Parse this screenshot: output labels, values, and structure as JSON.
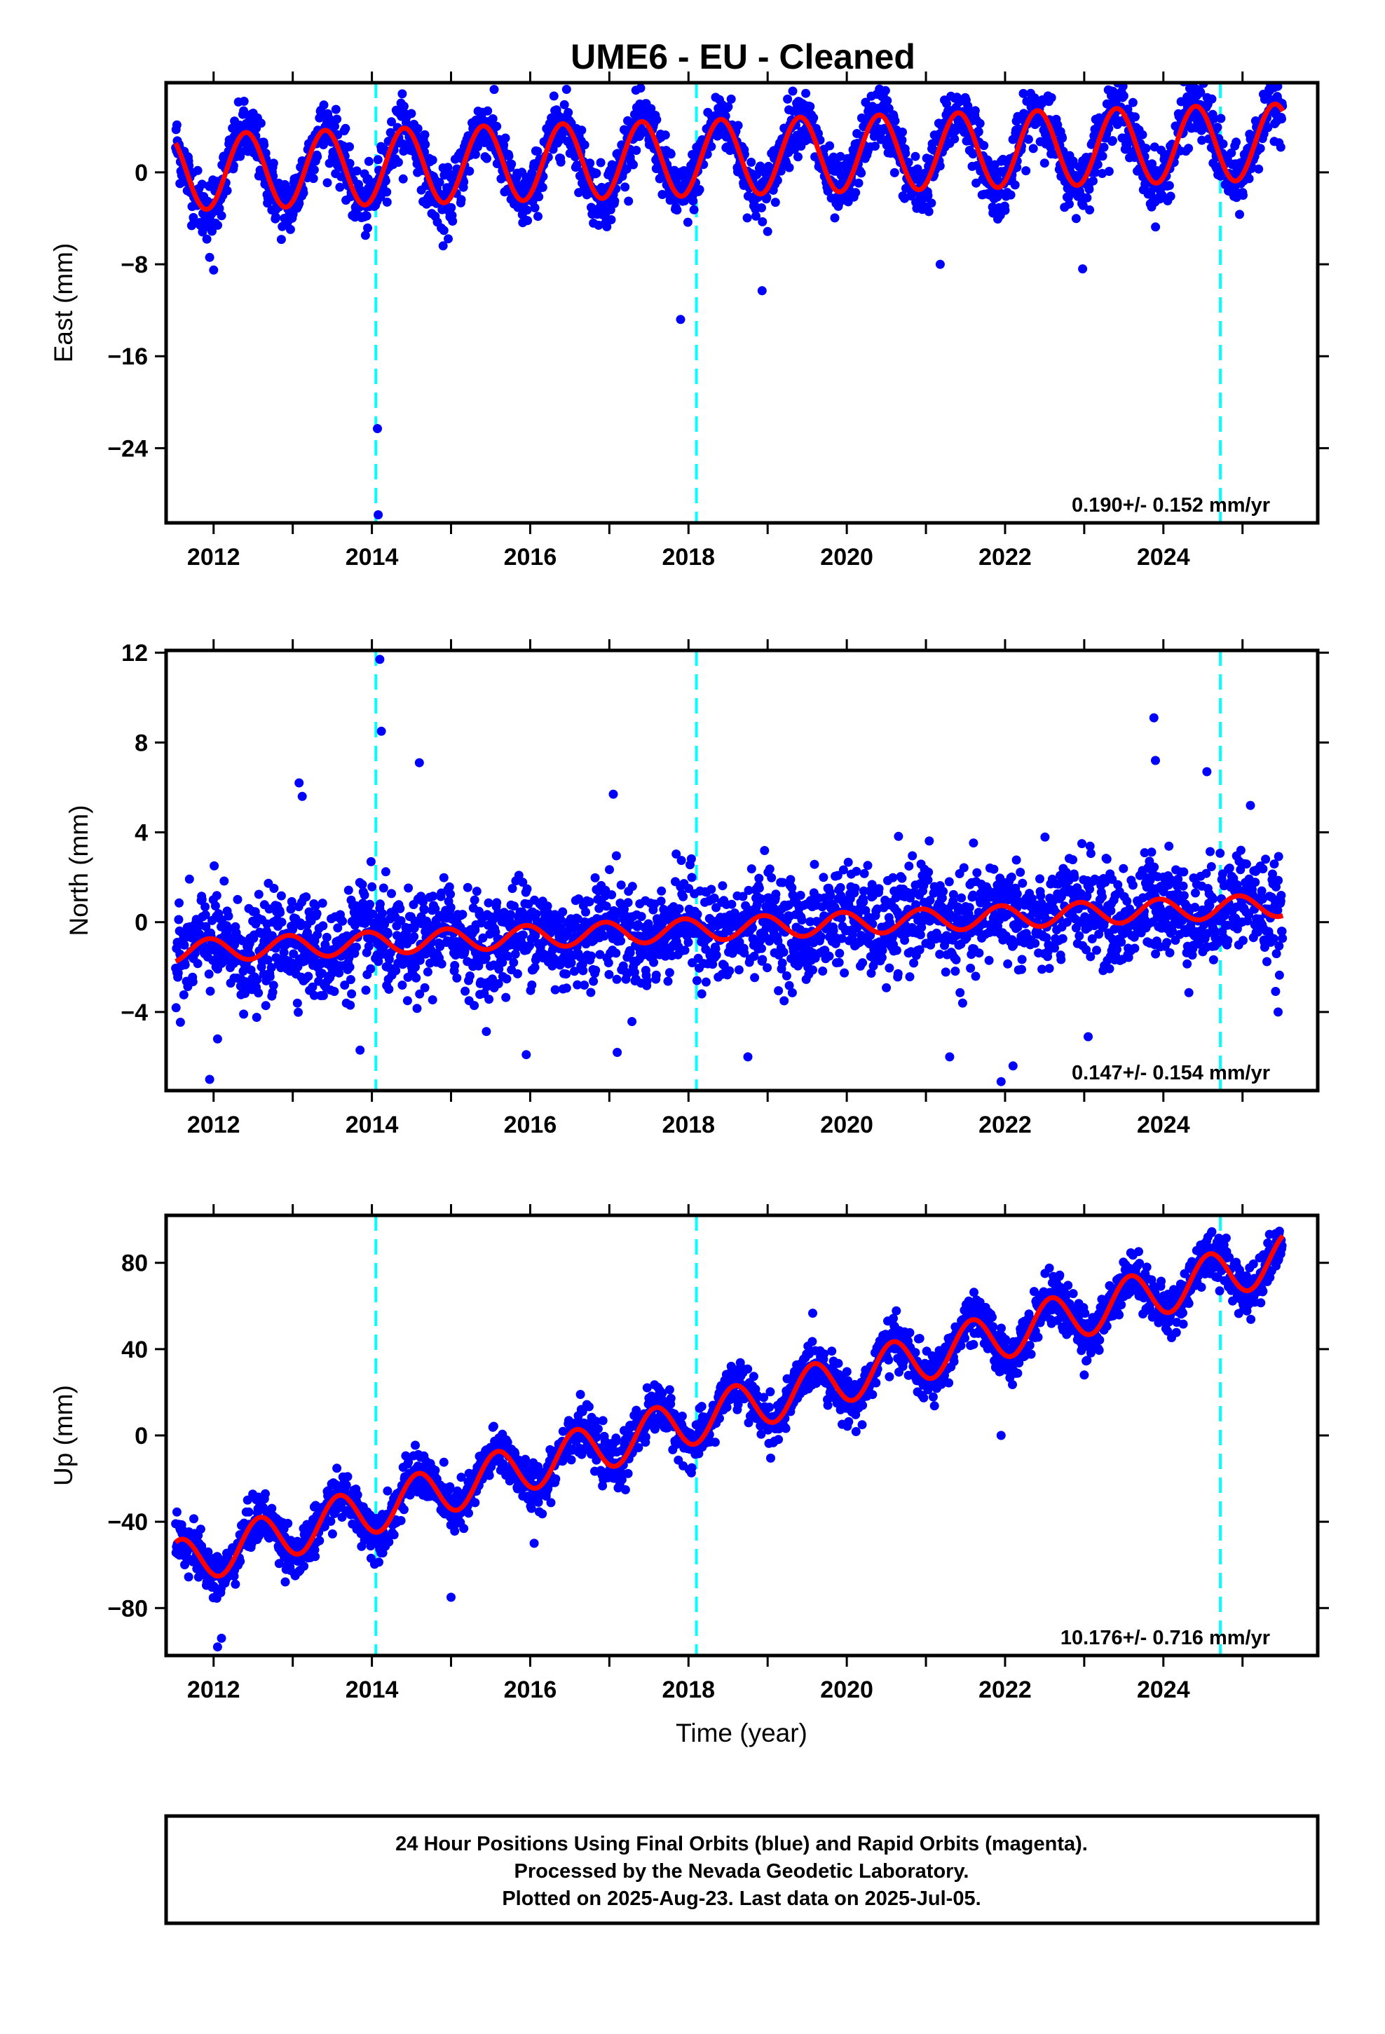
{
  "title": "UME6  - EU - Cleaned",
  "xlabel": "Time (year)",
  "colors": {
    "daily_positions": "#0000ff",
    "model_fit": "#ff0000",
    "event_markers": "#00ffff",
    "frame": "#000000"
  },
  "caption": {
    "lines": [
      "24 Hour Positions Using Final Orbits (blue) and Rapid Orbits (magenta).",
      "Processed by the Nevada Geodetic Laboratory.",
      "Plotted on 2025-Aug-23. Last data on 2025-Jul-05."
    ]
  },
  "chart_data": [
    {
      "type": "scatter",
      "component": "east",
      "ylabel": "East (mm)",
      "xlim": [
        2011.4,
        2025.95
      ],
      "ylim": [
        -30.5,
        7.8
      ],
      "xticks": [
        "2012",
        "2014",
        "2016",
        "2018",
        "2020",
        "2022",
        "2024"
      ],
      "yticks": [
        "0",
        "−8",
        "−16",
        "−24"
      ],
      "ytick_values": [
        0,
        -8,
        -16,
        -24
      ],
      "rate_label": "0.190+/- 0.152 mm/yr",
      "rate_mm_per_yr": 0.19,
      "event_lines_year": [
        2014.05,
        2018.1,
        2024.72
      ],
      "series": [
        {
          "name": "24 Hour Positions (final orbits)",
          "start_year": 2011.52,
          "end_year": 2025.51,
          "trend_mm_per_yr": 0.19,
          "offset_mm": 0.0,
          "annual_amplitude_mm": 3.3,
          "annual_phase_year": 0.41,
          "scatter_mm": 1.3
        },
        {
          "name": "model fit",
          "start_year": 2011.52,
          "end_year": 2025.51
        }
      ],
      "outliers": [
        [
          2011.95,
          -7.4
        ],
        [
          2012.0,
          -8.5
        ],
        [
          2014.07,
          -22.3
        ],
        [
          2014.08,
          -29.8
        ],
        [
          2017.9,
          -12.8
        ],
        [
          2018.93,
          -10.3
        ],
        [
          2021.18,
          -8.0
        ],
        [
          2022.98,
          -8.4
        ],
        [
          2014.9,
          -6.4
        ]
      ]
    },
    {
      "type": "scatter",
      "component": "north",
      "ylabel": "North (mm)",
      "xlim": [
        2011.4,
        2025.95
      ],
      "ylim": [
        -7.5,
        12.1
      ],
      "xticks": [
        "2012",
        "2014",
        "2016",
        "2018",
        "2020",
        "2022",
        "2024"
      ],
      "yticks": [
        "12",
        "8",
        "4",
        "0",
        "−4"
      ],
      "ytick_values": [
        12,
        8,
        4,
        0,
        -4
      ],
      "rate_label": "0.147+/- 0.154 mm/yr",
      "rate_mm_per_yr": 0.147,
      "event_lines_year": [
        2014.05,
        2018.1,
        2024.72
      ],
      "series": [
        {
          "name": "24 Hour Positions (final orbits)",
          "start_year": 2011.52,
          "end_year": 2025.51,
          "trend_mm_per_yr": 0.147,
          "offset_mm": -1.3,
          "annual_amplitude_mm": 0.5,
          "annual_phase_year": 0.95,
          "scatter_mm": 1.1
        },
        {
          "name": "model fit",
          "start_year": 2011.52,
          "end_year": 2025.51
        }
      ],
      "outliers": [
        [
          2014.1,
          11.7
        ],
        [
          2014.12,
          8.5
        ],
        [
          2014.6,
          7.1
        ],
        [
          2013.08,
          6.2
        ],
        [
          2013.12,
          5.6
        ],
        [
          2017.05,
          5.7
        ],
        [
          2023.88,
          9.1
        ],
        [
          2023.9,
          7.2
        ],
        [
          2024.55,
          6.7
        ],
        [
          2025.1,
          5.2
        ],
        [
          2011.95,
          -7.0
        ],
        [
          2012.05,
          -5.2
        ],
        [
          2015.95,
          -5.9
        ],
        [
          2017.1,
          -5.8
        ],
        [
          2018.75,
          -6.0
        ],
        [
          2021.3,
          -6.0
        ],
        [
          2021.95,
          -7.1
        ],
        [
          2022.1,
          -6.4
        ],
        [
          2023.05,
          -5.1
        ],
        [
          2025.45,
          -4.0
        ],
        [
          2013.85,
          -5.7
        ]
      ]
    },
    {
      "type": "scatter",
      "component": "up",
      "ylabel": "Up (mm)",
      "xlim": [
        2011.4,
        2025.95
      ],
      "ylim": [
        -102,
        102
      ],
      "xticks": [
        "2012",
        "2014",
        "2016",
        "2018",
        "2020",
        "2022",
        "2024"
      ],
      "yticks": [
        "80",
        "40",
        "0",
        "−40",
        "−80"
      ],
      "ytick_values": [
        80,
        40,
        0,
        -40,
        -80
      ],
      "rate_label": "10.176+/- 0.716 mm/yr",
      "rate_mm_per_yr": 10.176,
      "event_lines_year": [
        2014.05,
        2018.1,
        2024.72
      ],
      "series": [
        {
          "name": "24 Hour Positions (final orbits)",
          "start_year": 2011.52,
          "end_year": 2025.51,
          "trend_mm_per_yr": 10.176,
          "offset_mm": -60.0,
          "annual_amplitude_mm": 11.0,
          "annual_phase_year": 0.58,
          "scatter_mm": 5.5
        },
        {
          "name": "model fit",
          "start_year": 2011.52,
          "end_year": 2025.51
        }
      ],
      "outliers": [
        [
          2012.05,
          -98.0
        ],
        [
          2012.1,
          -94.0
        ],
        [
          2015.0,
          -75.0
        ],
        [
          2016.05,
          -50.0
        ],
        [
          2021.95,
          0.0
        ],
        [
          2023.0,
          28.0
        ]
      ]
    }
  ]
}
